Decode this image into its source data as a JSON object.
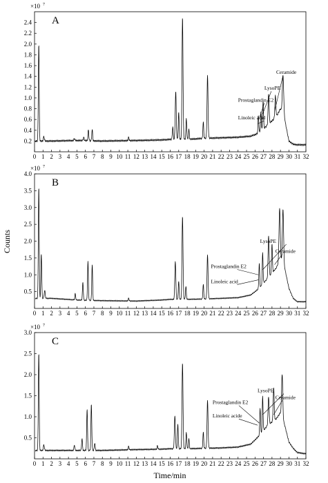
{
  "figure": {
    "ylabel": "Counts",
    "xlabel": "Time/min",
    "scale_text": "×10",
    "scale_exp": "7"
  },
  "chart_data": [
    {
      "type": "line",
      "panel": "A",
      "xlim": [
        0,
        32
      ],
      "ylim": [
        0,
        2.6
      ],
      "x_ticks": [
        0,
        1,
        2,
        3,
        4,
        5,
        6,
        7,
        8,
        9,
        10,
        11,
        12,
        13,
        14,
        15,
        16,
        17,
        18,
        19,
        20,
        21,
        22,
        23,
        24,
        25,
        26,
        27,
        28,
        29,
        30,
        31,
        32
      ],
      "y_ticks": [
        {
          "v": 0.2,
          "label": "0.2"
        },
        {
          "v": 0.4,
          "label": "0.4"
        },
        {
          "v": 0.6,
          "label": "0.6"
        },
        {
          "v": 0.8,
          "label": "0.8"
        },
        {
          "v": 1.0,
          "label": "1.0"
        },
        {
          "v": 1.2,
          "label": "1.2"
        },
        {
          "v": 1.4,
          "label": "1.4"
        },
        {
          "v": 1.6,
          "label": "1.6"
        },
        {
          "v": 1.8,
          "label": "1.8"
        },
        {
          "v": 2.0,
          "label": "2.0"
        },
        {
          "v": 2.2,
          "label": "2.2"
        },
        {
          "v": 2.4,
          "label": "2.4"
        }
      ],
      "baseline": [
        [
          0.1,
          0.2
        ],
        [
          2,
          0.2
        ],
        [
          5,
          0.21
        ],
        [
          8,
          0.2
        ],
        [
          12,
          0.21
        ],
        [
          15,
          0.22
        ],
        [
          16,
          0.23
        ],
        [
          18,
          0.23
        ],
        [
          20,
          0.25
        ],
        [
          22,
          0.26
        ],
        [
          24,
          0.27
        ],
        [
          25.5,
          0.29
        ],
        [
          26.5,
          0.35
        ],
        [
          27.5,
          0.5
        ],
        [
          28.5,
          0.65
        ],
        [
          29,
          0.8
        ],
        [
          29.5,
          0.6
        ],
        [
          30,
          0.2
        ],
        [
          30.5,
          0.14
        ],
        [
          31,
          0.13
        ],
        [
          32,
          0.13
        ]
      ],
      "peaks": [
        [
          0.5,
          2.03,
          0.05
        ],
        [
          1.1,
          0.3,
          0.06
        ],
        [
          4.7,
          0.26,
          0.05
        ],
        [
          5.8,
          0.28,
          0.06
        ],
        [
          6.35,
          0.42,
          0.05
        ],
        [
          6.8,
          0.43,
          0.05
        ],
        [
          11.1,
          0.28,
          0.05
        ],
        [
          16.3,
          0.45,
          0.05
        ],
        [
          16.65,
          1.11,
          0.06
        ],
        [
          17.0,
          0.72,
          0.05
        ],
        [
          17.45,
          2.5,
          0.06
        ],
        [
          17.9,
          0.6,
          0.05
        ],
        [
          18.2,
          0.4,
          0.05
        ],
        [
          19.9,
          0.52,
          0.05
        ],
        [
          20.4,
          1.38,
          0.06
        ],
        [
          26.4,
          0.55,
          0.05
        ],
        [
          26.7,
          0.58,
          0.05
        ],
        [
          26.95,
          0.75,
          0.05
        ],
        [
          27.6,
          0.78,
          0.06
        ],
        [
          28.4,
          0.62,
          0.06
        ],
        [
          29.3,
          0.96,
          0.08
        ]
      ],
      "annotations": [
        {
          "text": "Ceramide",
          "x": 28.5,
          "y": 1.45,
          "tx": 28.3,
          "ty": 0.75
        },
        {
          "text": "LysoPE",
          "x": 27.1,
          "y": 1.15,
          "tx": 26.9,
          "ty": 0.7
        },
        {
          "text": "Prostaglandin E2",
          "x": 24.0,
          "y": 0.93,
          "tx": 26.5,
          "ty": 0.62
        },
        {
          "text": "Linoleic acid",
          "x": 24.0,
          "y": 0.6,
          "tx": 26.3,
          "ty": 0.52
        }
      ]
    },
    {
      "type": "line",
      "panel": "B",
      "xlim": [
        0,
        32
      ],
      "ylim": [
        0,
        4.0
      ],
      "x_ticks": [
        0,
        1,
        2,
        3,
        4,
        5,
        6,
        7,
        8,
        9,
        10,
        11,
        12,
        13,
        14,
        15,
        16,
        17,
        18,
        19,
        20,
        21,
        22,
        23,
        24,
        25,
        26,
        27,
        28,
        29,
        30,
        31,
        32
      ],
      "y_ticks": [
        {
          "v": 0.5,
          "label": "0.5"
        },
        {
          "v": 1.0,
          "label": "1.0"
        },
        {
          "v": 1.5,
          "label": "1.5"
        },
        {
          "v": 2.0,
          "label": "2.0"
        },
        {
          "v": 2.5,
          "label": "2.5"
        },
        {
          "v": 3.0,
          "label": "3.0"
        },
        {
          "v": 3.5,
          "label": "3.5"
        },
        {
          "v": 4.0,
          "label": "4.0"
        }
      ],
      "baseline": [
        [
          0.1,
          0.3
        ],
        [
          2,
          0.3
        ],
        [
          5,
          0.25
        ],
        [
          8,
          0.23
        ],
        [
          12,
          0.22
        ],
        [
          15,
          0.25
        ],
        [
          16,
          0.27
        ],
        [
          18,
          0.27
        ],
        [
          20,
          0.28
        ],
        [
          22,
          0.3
        ],
        [
          24,
          0.32
        ],
        [
          25.5,
          0.4
        ],
        [
          26.5,
          0.6
        ],
        [
          27.5,
          0.9
        ],
        [
          28.5,
          1.2
        ],
        [
          29,
          1.5
        ],
        [
          29.5,
          1.2
        ],
        [
          30,
          0.6
        ],
        [
          30.5,
          0.3
        ],
        [
          31,
          0.2
        ],
        [
          32,
          0.2
        ]
      ],
      "peaks": [
        [
          0.5,
          3.55,
          0.05
        ],
        [
          0.8,
          1.55,
          0.05
        ],
        [
          1.2,
          0.45,
          0.06
        ],
        [
          4.8,
          0.4,
          0.05
        ],
        [
          5.7,
          0.75,
          0.05
        ],
        [
          6.3,
          1.37,
          0.05
        ],
        [
          6.8,
          1.28,
          0.05
        ],
        [
          11.1,
          0.3,
          0.05
        ],
        [
          16.6,
          1.35,
          0.06
        ],
        [
          17.0,
          0.75,
          0.05
        ],
        [
          17.45,
          2.7,
          0.06
        ],
        [
          17.85,
          0.6,
          0.05
        ],
        [
          19.9,
          0.65,
          0.05
        ],
        [
          20.4,
          1.52,
          0.06
        ],
        [
          26.5,
          0.95,
          0.05
        ],
        [
          26.9,
          1.15,
          0.05
        ],
        [
          27.6,
          1.45,
          0.06
        ],
        [
          28.0,
          1.1,
          0.05
        ],
        [
          28.9,
          1.75,
          0.07
        ],
        [
          29.3,
          1.85,
          0.07
        ]
      ],
      "annotations": [
        {
          "text": "LysoPE",
          "x": 26.6,
          "y": 1.95,
          "tx": 26.9,
          "ty": 1.15
        },
        {
          "text": "Ceramide",
          "x": 28.4,
          "y": 1.65,
          "tx": 28.3,
          "ty": 1.3
        },
        {
          "text": "Prostaglandin E2",
          "x": 20.8,
          "y": 1.2,
          "tx": 26.4,
          "ty": 1.0
        },
        {
          "text": "Linoleic acid",
          "x": 20.8,
          "y": 0.75,
          "tx": 26.4,
          "ty": 0.85
        }
      ]
    },
    {
      "type": "line",
      "panel": "C",
      "xlim": [
        0,
        32
      ],
      "ylim": [
        0,
        3.0
      ],
      "x_ticks": [
        0,
        1,
        2,
        3,
        4,
        5,
        6,
        7,
        8,
        9,
        10,
        11,
        12,
        13,
        14,
        15,
        16,
        17,
        18,
        19,
        20,
        21,
        22,
        23,
        24,
        25,
        26,
        27,
        28,
        29,
        30,
        31,
        32
      ],
      "y_ticks": [
        {
          "v": 0.5,
          "label": "0.5"
        },
        {
          "v": 1.0,
          "label": "1.0"
        },
        {
          "v": 1.5,
          "label": "1.5"
        },
        {
          "v": 2.0,
          "label": "2.0"
        },
        {
          "v": 2.5,
          "label": "2.5"
        },
        {
          "v": 3.0,
          "label": "3.0"
        }
      ],
      "baseline": [
        [
          0.1,
          0.2
        ],
        [
          2,
          0.2
        ],
        [
          5,
          0.2
        ],
        [
          8,
          0.2
        ],
        [
          12,
          0.22
        ],
        [
          15,
          0.23
        ],
        [
          16,
          0.24
        ],
        [
          18,
          0.24
        ],
        [
          20,
          0.25
        ],
        [
          22,
          0.26
        ],
        [
          24,
          0.28
        ],
        [
          25.5,
          0.35
        ],
        [
          26.5,
          0.55
        ],
        [
          27.5,
          0.8
        ],
        [
          28.5,
          0.95
        ],
        [
          29,
          1.1
        ],
        [
          29.5,
          0.8
        ],
        [
          30,
          0.4
        ],
        [
          30.5,
          0.25
        ],
        [
          31,
          0.15
        ],
        [
          32,
          0.12
        ]
      ],
      "peaks": [
        [
          0.5,
          2.55,
          0.05
        ],
        [
          1.1,
          0.35,
          0.06
        ],
        [
          4.7,
          0.35,
          0.05
        ],
        [
          5.6,
          0.5,
          0.05
        ],
        [
          6.2,
          1.2,
          0.05
        ],
        [
          6.7,
          1.32,
          0.05
        ],
        [
          7.1,
          0.4,
          0.05
        ],
        [
          11.1,
          0.3,
          0.05
        ],
        [
          14.5,
          0.3,
          0.05
        ],
        [
          16.55,
          1.0,
          0.06
        ],
        [
          16.9,
          0.8,
          0.05
        ],
        [
          17.45,
          2.27,
          0.06
        ],
        [
          17.9,
          0.6,
          0.05
        ],
        [
          18.2,
          0.45,
          0.05
        ],
        [
          19.9,
          0.6,
          0.05
        ],
        [
          20.4,
          1.35,
          0.06
        ],
        [
          26.6,
          0.85,
          0.05
        ],
        [
          26.9,
          1.05,
          0.05
        ],
        [
          27.6,
          0.88,
          0.06
        ],
        [
          28.2,
          1.0,
          0.06
        ],
        [
          29.2,
          1.25,
          0.07
        ]
      ],
      "annotations": [
        {
          "text": "LysoPE",
          "x": 26.3,
          "y": 1.58,
          "tx": 26.9,
          "ty": 1.05
        },
        {
          "text": "Ceramide",
          "x": 28.4,
          "y": 1.42,
          "tx": 28.2,
          "ty": 1.05
        },
        {
          "text": "Prostaglandin E2",
          "x": 21.0,
          "y": 1.3,
          "tx": 26.5,
          "ty": 0.85
        },
        {
          "text": "Linoleic acide",
          "x": 21.0,
          "y": 0.98,
          "tx": 26.3,
          "ty": 0.8
        }
      ]
    }
  ]
}
